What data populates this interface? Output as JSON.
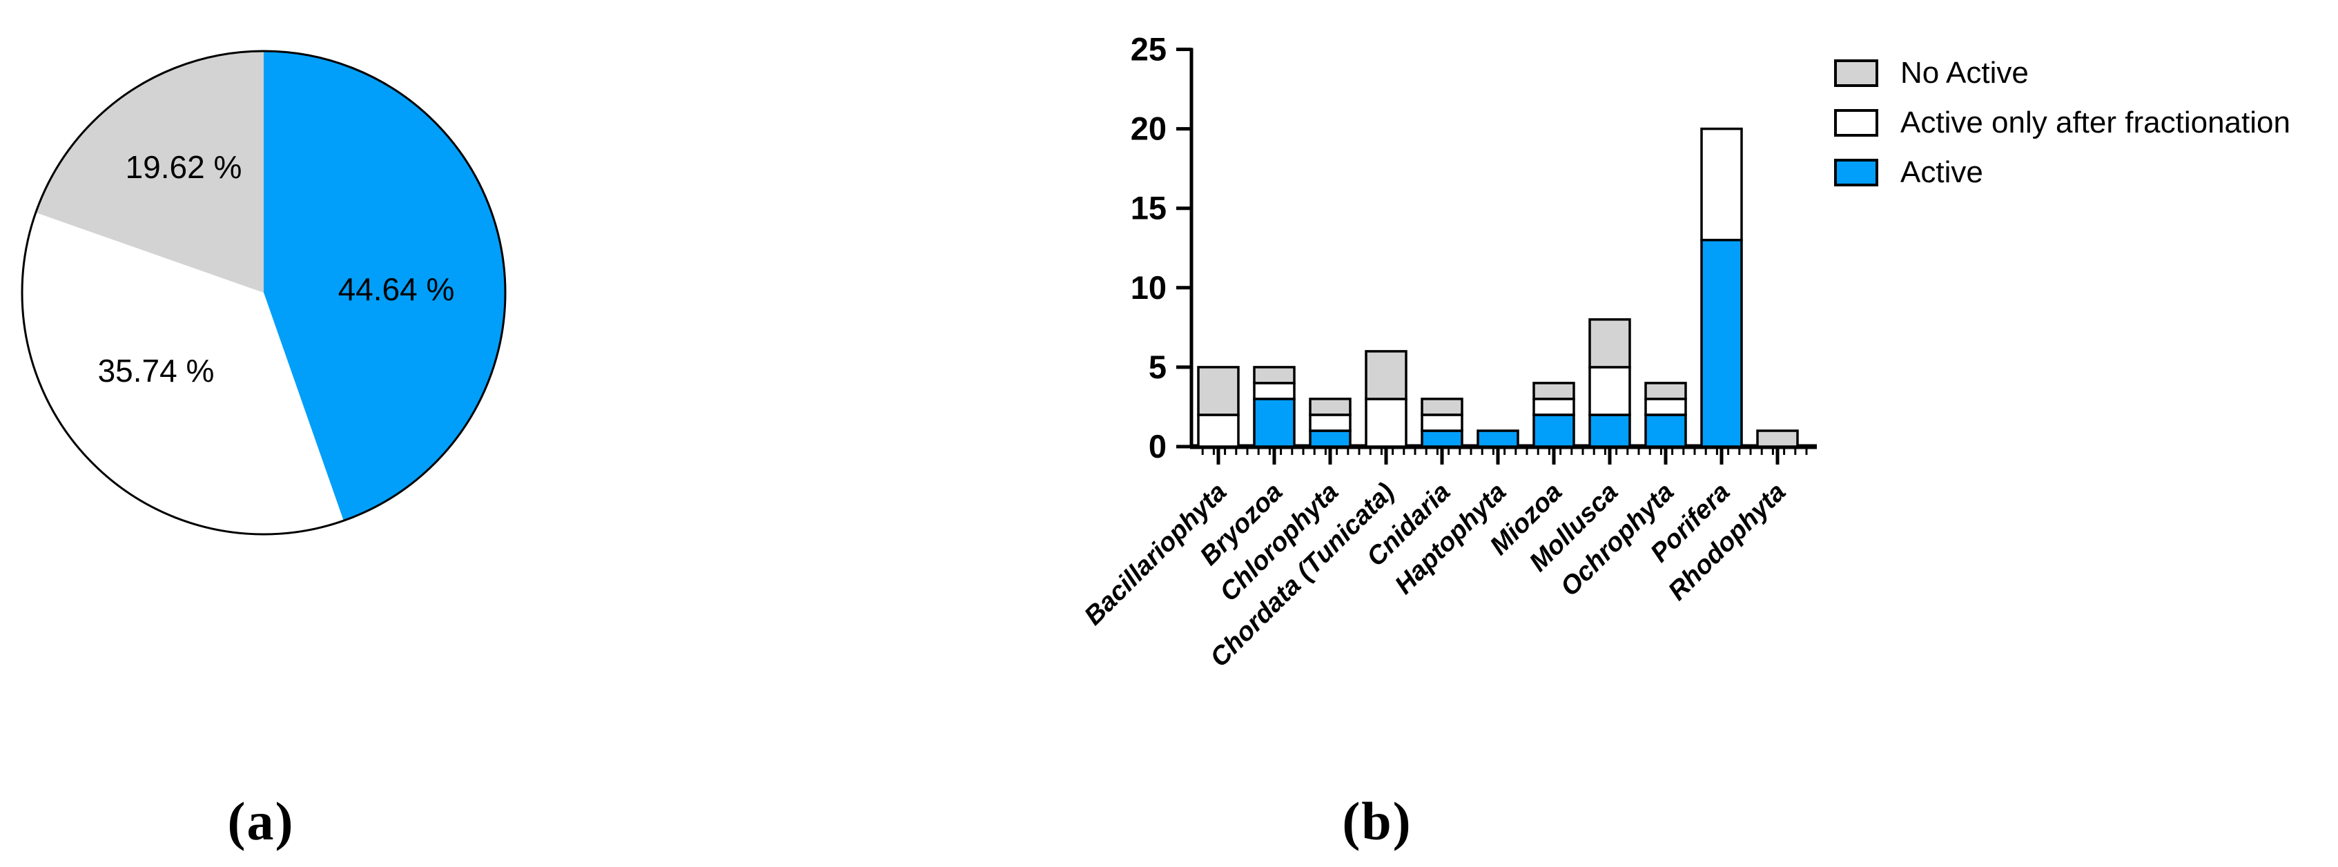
{
  "figure": {
    "background": "#FFFFFF",
    "captions": {
      "a": "(a)",
      "b": "(b)"
    }
  },
  "colors": {
    "active": "#019FFA",
    "fractionation": "#FFFFFF",
    "no_active": "#D3D3D3",
    "outline": "#000000",
    "text": "#000000"
  },
  "legend": {
    "position": "top-right",
    "items": [
      {
        "label": "No Active",
        "color_key": "no_active"
      },
      {
        "label": "Active only after fractionation",
        "color_key": "fractionation"
      },
      {
        "label": "Active",
        "color_key": "active"
      }
    ]
  },
  "chart_data": [
    {
      "id": "pie",
      "type": "pie",
      "start": "top",
      "direction": "clockwise",
      "unit": "%",
      "slices": [
        {
          "name": "Active",
          "value": 44.64,
          "label": "44.64 %",
          "color_key": "active"
        },
        {
          "name": "Active only after fractionation",
          "value": 35.74,
          "label": "35.74 %",
          "color_key": "fractionation"
        },
        {
          "name": "No Active",
          "value": 19.62,
          "label": "19.62 %",
          "color_key": "no_active"
        }
      ]
    },
    {
      "id": "bars",
      "type": "bar",
      "stacked": true,
      "grid": false,
      "ylim": [
        0,
        25
      ],
      "y_ticks": [
        0,
        5,
        10,
        15,
        20,
        25
      ],
      "categories": [
        "Bacillariophyta",
        "Bryozoa",
        "Chlorophyta",
        "Chordata (Tunicata)",
        "Cnidaria",
        "Haptophyta",
        "Miozoa",
        "Mollusca",
        "Ochrophyta",
        "Porifera",
        "Rhodophyta"
      ],
      "series": [
        {
          "name": "Active",
          "color_key": "active",
          "values": [
            0,
            3,
            1,
            0,
            1,
            1,
            2,
            2,
            2,
            13,
            0
          ]
        },
        {
          "name": "Active only after fractionation",
          "color_key": "fractionation",
          "values": [
            2,
            1,
            1,
            3,
            1,
            0,
            1,
            3,
            1,
            7,
            0
          ]
        },
        {
          "name": "No Active",
          "color_key": "no_active",
          "values": [
            3,
            1,
            1,
            3,
            1,
            0,
            1,
            3,
            1,
            0,
            1
          ]
        }
      ],
      "totals": [
        5,
        5,
        3,
        6,
        3,
        1,
        4,
        8,
        4,
        20,
        1
      ]
    }
  ]
}
